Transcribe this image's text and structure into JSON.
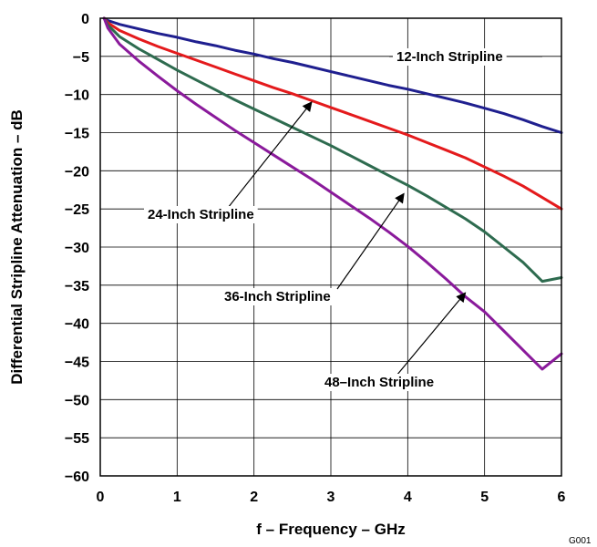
{
  "chart_data": {
    "type": "line",
    "title": "",
    "xlabel": "f – Frequency – GHz",
    "ylabel": "Differential Stripline Attenuation – dB",
    "xlim": [
      0,
      6
    ],
    "ylim": [
      -60,
      0
    ],
    "grid": true,
    "x_ticks": [
      "0",
      "1",
      "2",
      "3",
      "4",
      "5",
      "6"
    ],
    "y_ticks": [
      "0",
      "−5",
      "−10",
      "−15",
      "−20",
      "−25",
      "−30",
      "−35",
      "−40",
      "−45",
      "−50",
      "−55",
      "−60"
    ],
    "figure_code": "G001",
    "series": [
      {
        "name": "12-Inch Stripline",
        "color": "#1f1f8f",
        "x": [
          0.05,
          0.1,
          0.25,
          0.5,
          0.75,
          1.0,
          1.25,
          1.5,
          1.75,
          2.0,
          2.25,
          2.5,
          2.75,
          3.0,
          3.25,
          3.5,
          3.75,
          4.0,
          4.25,
          4.5,
          4.75,
          5.0,
          5.25,
          5.5,
          5.75,
          6.0
        ],
        "y": [
          0,
          -0.3,
          -0.8,
          -1.4,
          -2.0,
          -2.5,
          -3.1,
          -3.6,
          -4.2,
          -4.7,
          -5.3,
          -5.8,
          -6.4,
          -7.0,
          -7.6,
          -8.2,
          -8.8,
          -9.3,
          -9.9,
          -10.5,
          -11.1,
          -11.8,
          -12.5,
          -13.3,
          -14.2,
          -15.0
        ]
      },
      {
        "name": "24-Inch Stripline",
        "color": "#e41a1c",
        "x": [
          0.05,
          0.1,
          0.25,
          0.5,
          0.75,
          1.0,
          1.25,
          1.5,
          1.75,
          2.0,
          2.25,
          2.5,
          2.75,
          3.0,
          3.25,
          3.5,
          3.75,
          4.0,
          4.25,
          4.5,
          4.75,
          5.0,
          5.25,
          5.5,
          5.75,
          6.0
        ],
        "y": [
          0,
          -0.6,
          -1.6,
          -2.7,
          -3.7,
          -4.6,
          -5.5,
          -6.4,
          -7.3,
          -8.2,
          -9.1,
          -9.9,
          -10.8,
          -11.7,
          -12.6,
          -13.5,
          -14.4,
          -15.3,
          -16.3,
          -17.3,
          -18.3,
          -19.5,
          -20.7,
          -22.0,
          -23.5,
          -25.0
        ]
      },
      {
        "name": "36-Inch Stripline",
        "color": "#2e6b4f",
        "x": [
          0.05,
          0.1,
          0.25,
          0.5,
          0.75,
          1.0,
          1.25,
          1.5,
          1.75,
          2.0,
          2.25,
          2.5,
          2.75,
          3.0,
          3.25,
          3.5,
          3.75,
          4.0,
          4.25,
          4.5,
          4.75,
          5.0,
          5.25,
          5.5,
          5.75,
          6.0
        ],
        "y": [
          0,
          -0.9,
          -2.4,
          -4.0,
          -5.4,
          -6.8,
          -8.1,
          -9.4,
          -10.7,
          -11.9,
          -13.1,
          -14.3,
          -15.5,
          -16.7,
          -18.0,
          -19.3,
          -20.6,
          -21.9,
          -23.3,
          -24.8,
          -26.3,
          -28.0,
          -30.0,
          -32.0,
          -34.5,
          -34.0
        ]
      },
      {
        "name": "48–Inch Stripline",
        "color": "#8a1a9b",
        "x": [
          0.05,
          0.1,
          0.25,
          0.5,
          0.75,
          1.0,
          1.25,
          1.5,
          1.75,
          2.0,
          2.25,
          2.5,
          2.75,
          3.0,
          3.25,
          3.5,
          3.75,
          4.0,
          4.25,
          4.5,
          4.75,
          5.0,
          5.25,
          5.5,
          5.75,
          6.0
        ],
        "y": [
          0,
          -1.3,
          -3.4,
          -5.6,
          -7.6,
          -9.5,
          -11.3,
          -13.0,
          -14.7,
          -16.3,
          -17.9,
          -19.5,
          -21.1,
          -22.8,
          -24.5,
          -26.2,
          -28.0,
          -29.9,
          -32.0,
          -34.2,
          -36.5,
          -38.5,
          -41.0,
          -43.5,
          -46.0,
          -44.0
        ]
      }
    ],
    "annotations": [
      {
        "text": "12-Inch Stripline",
        "series": 0,
        "arrow_to": null
      },
      {
        "text": "24-Inch Stripline",
        "series": 1,
        "arrow_to": {
          "x": 2.75,
          "y": -11.0
        }
      },
      {
        "text": "36-Inch Stripline",
        "series": 2,
        "arrow_to": {
          "x": 3.95,
          "y": -23.0
        }
      },
      {
        "text": "48–Inch Stripline",
        "series": 3,
        "arrow_to": {
          "x": 4.75,
          "y": -36.0
        }
      }
    ]
  }
}
